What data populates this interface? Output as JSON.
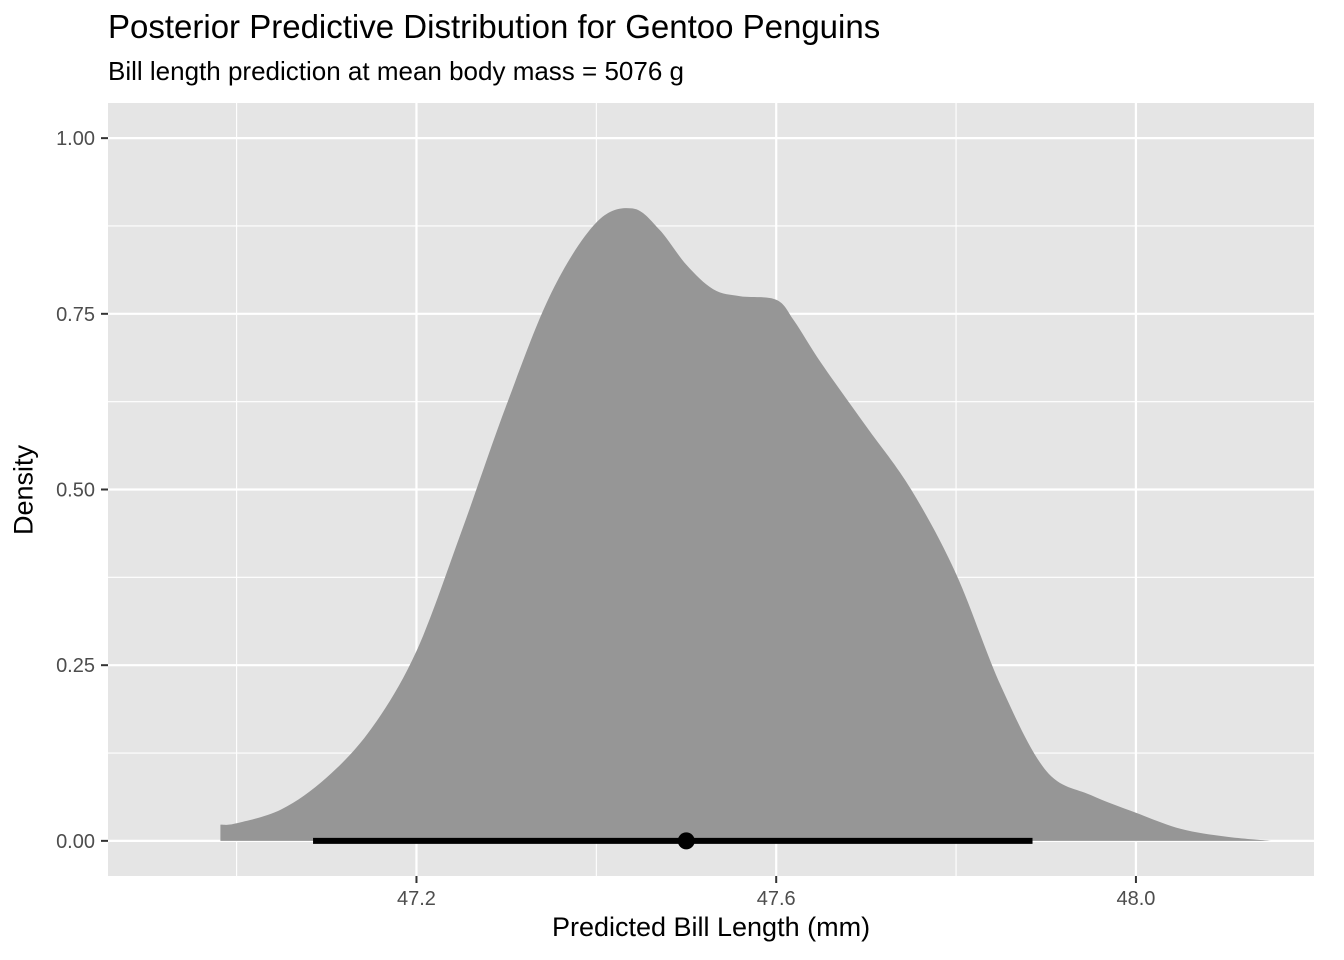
{
  "chart_data": {
    "type": "area",
    "title": "Posterior Predictive Distribution for Gentoo Penguins",
    "subtitle": "Bill length prediction at mean body mass = 5076 g",
    "xlabel": "Predicted Bill Length (mm)",
    "ylabel": "Density",
    "xlim": [
      46.857,
      48.198
    ],
    "ylim": [
      -0.05,
      1.05
    ],
    "x_ticks": [
      47.2,
      47.6,
      48.0
    ],
    "x_tick_labels": [
      "47.2",
      "47.6",
      "48.0"
    ],
    "y_ticks": [
      0.0,
      0.25,
      0.5,
      0.75,
      1.0
    ],
    "y_tick_labels": [
      "0.00",
      "0.25",
      "0.50",
      "0.75",
      "1.00"
    ],
    "grid": true,
    "density_curve": {
      "x": [
        46.982,
        47.0,
        47.05,
        47.1,
        47.15,
        47.2,
        47.25,
        47.3,
        47.35,
        47.4,
        47.44,
        47.47,
        47.5,
        47.53,
        47.56,
        47.6,
        47.62,
        47.65,
        47.7,
        47.75,
        47.8,
        47.85,
        47.9,
        47.95,
        48.0,
        48.05,
        48.1,
        48.15
      ],
      "y": [
        0.023,
        0.025,
        0.045,
        0.09,
        0.16,
        0.27,
        0.44,
        0.62,
        0.78,
        0.88,
        0.9,
        0.87,
        0.82,
        0.785,
        0.775,
        0.77,
        0.74,
        0.68,
        0.59,
        0.5,
        0.38,
        0.22,
        0.1,
        0.065,
        0.04,
        0.017,
        0.006,
        0.0
      ]
    },
    "point_interval": {
      "point": 47.5,
      "interval": [
        47.085,
        47.885
      ]
    },
    "colors": {
      "panel_background": "#e5e5e5",
      "grid": "#ffffff",
      "density_fill": "#969696",
      "interval": "#000000"
    }
  }
}
